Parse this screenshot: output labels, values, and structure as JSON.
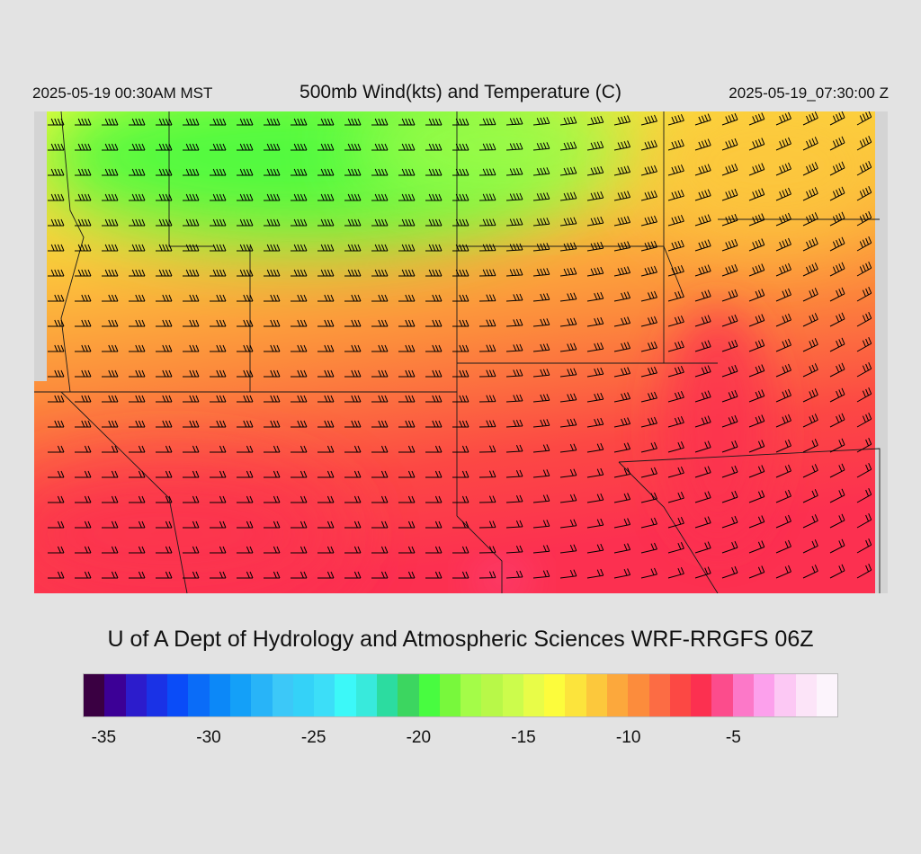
{
  "header": {
    "local_time": "2025-05-19 00:30AM MST",
    "title": "500mb Wind(kts) and Temperature (C)",
    "valid_time": "2025-05-19_07:30:00 Z"
  },
  "credit": "U of A Dept of Hydrology and Atmospheric Sciences WRF-RRGFS 06Z",
  "colorbar": {
    "min": -36,
    "max": -1,
    "step": 1,
    "colors": [
      "#3a0042",
      "#3c0096",
      "#2c1ccc",
      "#1a32e6",
      "#0a4cf8",
      "#0a6cf8",
      "#0c88f8",
      "#14a0f8",
      "#28b4f8",
      "#3cc8f8",
      "#34d2f8",
      "#3cdef8",
      "#3cf8f8",
      "#38eadc",
      "#2cdca0",
      "#3cd660",
      "#48fc40",
      "#78f83c",
      "#a4fc48",
      "#b8f848",
      "#ccfc4c",
      "#e8fc48",
      "#fcfc3c",
      "#fce43c",
      "#fcc83c",
      "#fca83c",
      "#fc8c3c",
      "#fc6c44",
      "#fc4844",
      "#fc3050",
      "#fc4c8c",
      "#fc78c8",
      "#fca0ec",
      "#fcc8f4",
      "#fce4f8",
      "#fcf4fc"
    ],
    "ticks": [
      "-35",
      "-30",
      "-25",
      "-20",
      "-15",
      "-10",
      "-5"
    ]
  },
  "chart_data": {
    "type": "map",
    "field": "500mb temperature (C) with wind barbs (kts)",
    "legend_units": "C",
    "temperature_range": [
      -20,
      -5
    ]
  }
}
